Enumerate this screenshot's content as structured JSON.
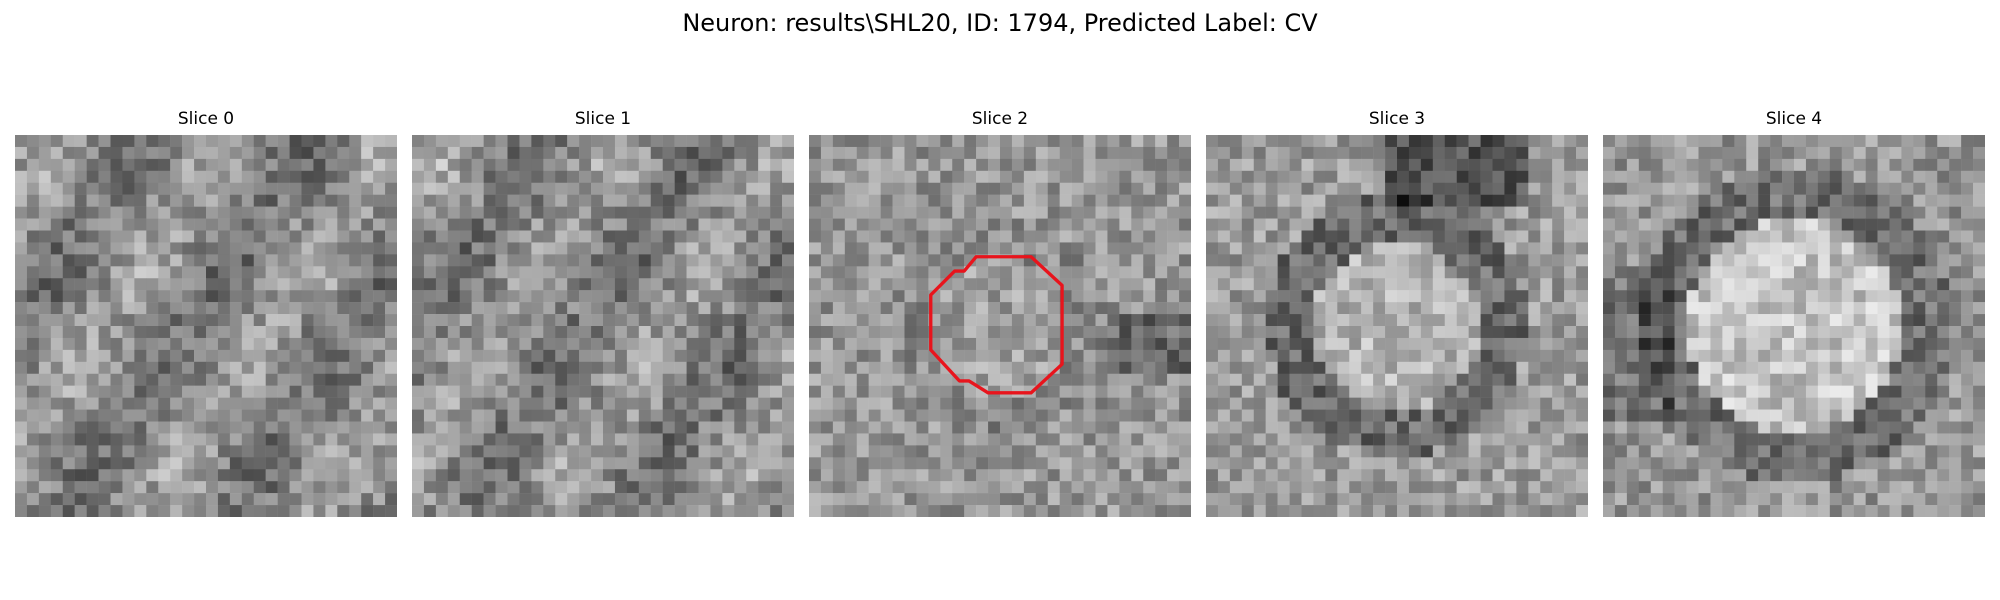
{
  "figure": {
    "title": "Neuron: results\\SHL20, ID: 1794, Predicted Label: CV"
  },
  "slices": [
    {
      "title": "Slice 0",
      "seed": 11,
      "pattern": "tissue",
      "contour": false
    },
    {
      "title": "Slice 1",
      "seed": 23,
      "pattern": "tissue",
      "contour": false
    },
    {
      "title": "Slice 2",
      "seed": 37,
      "pattern": "cell-faint",
      "contour": true
    },
    {
      "title": "Slice 3",
      "seed": 53,
      "pattern": "cell-ring",
      "contour": false
    },
    {
      "title": "Slice 4",
      "seed": 71,
      "pattern": "cell-bright",
      "contour": false
    }
  ],
  "colors": {
    "background": "#ffffff",
    "contour": "#e8141c"
  }
}
